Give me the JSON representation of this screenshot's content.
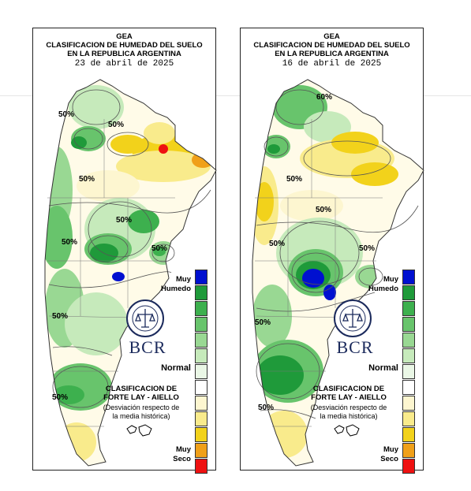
{
  "panels": [
    {
      "header": {
        "line1": "GEA",
        "line2": "CLASIFICACION DE HUMEDAD DEL SUELO",
        "line3": "EN LA REPUBLICA ARGENTINA",
        "date": "23 de abril de 2025"
      },
      "contour_labels": [
        "50%",
        "50%",
        "50%",
        "50%",
        "50%",
        "50%",
        "50%",
        "50%"
      ]
    },
    {
      "header": {
        "line1": "GEA",
        "line2": "CLASIFICACION DE HUMEDAD DEL SUELO",
        "line3": "EN LA REPUBLICA ARGENTINA",
        "date": "16 de abril de 2025"
      },
      "contour_labels": [
        "60%",
        "50%",
        "50%",
        "50%",
        "50%",
        "50%",
        "50%"
      ]
    }
  ],
  "legend": {
    "top_label_1": "Muy",
    "top_label_2": "Humedo",
    "middle_label": "Normal",
    "bottom_label_1": "Muy",
    "bottom_label_2": "Seco",
    "colors": [
      "#0010d0",
      "#1f9a3a",
      "#3db04e",
      "#68c46c",
      "#99d893",
      "#c6eabb",
      "#eaf7e6",
      "#ffffff",
      "#fdf6d0",
      "#f9eb8c",
      "#f2d21b",
      "#f0a019",
      "#ee1111"
    ]
  },
  "branding": {
    "logo_text": "BCR",
    "seal_text": "BOLSA DE COMERCIO DE ROSARIO"
  },
  "classification": {
    "line1": "CLASIFICACION DE",
    "line2": "FORTE LAY - AIELLO",
    "line3": "(Desviación respecto de",
    "line4": "la media histórica)"
  },
  "map": {
    "land_color": "#fffbe8",
    "ocean_color": "#ffffff"
  }
}
